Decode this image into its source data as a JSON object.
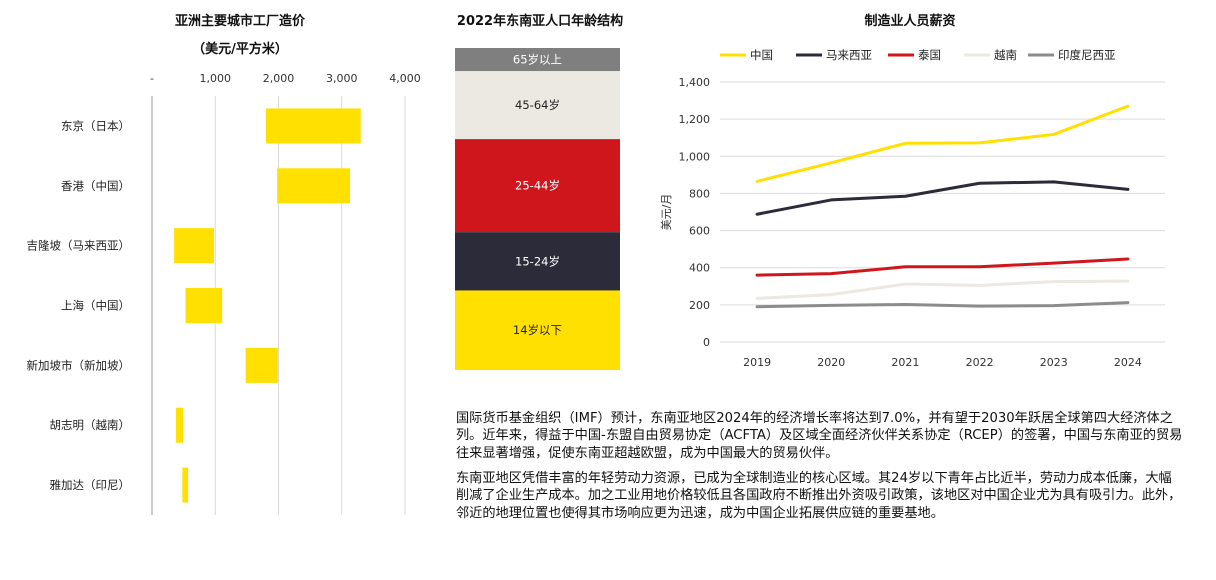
{
  "chart_data": [
    {
      "type": "bar",
      "subtype": "floating-horizontal",
      "title": "亚洲主要城市工厂造价",
      "subtitle": "（美元/平方米）",
      "xlim": [
        0,
        4000
      ],
      "ticks": [
        0,
        1000,
        2000,
        3000,
        4000
      ],
      "tick_labels": [
        "-",
        "1,000",
        "2,000",
        "3,000",
        "4,000"
      ],
      "grid": true,
      "color": "#FFE000",
      "categories": [
        "东京（日本）",
        "香港（中国）",
        "吉隆坡（马来西亚）",
        "上海（中国）",
        "新加坡市（新加坡）",
        "胡志明（越南）",
        "雅加达（印尼）"
      ],
      "ranges": [
        [
          1800,
          3300
        ],
        [
          1980,
          3130
        ],
        [
          350,
          980
        ],
        [
          530,
          1110
        ],
        [
          1480,
          1990
        ],
        [
          380,
          490
        ],
        [
          480,
          570
        ]
      ]
    },
    {
      "type": "bar",
      "subtype": "stacked-100",
      "title": "2022年东南亚人口年龄结构",
      "segments": [
        {
          "label": "65岁以上",
          "share": 0.072,
          "color": "#7F7F7F"
        },
        {
          "label": "45-64岁",
          "share": 0.211,
          "color": "#ECE8E2"
        },
        {
          "label": "25-44岁",
          "share": 0.289,
          "color": "#D0161D"
        },
        {
          "label": "15-24岁",
          "share": 0.181,
          "color": "#2B2B3A"
        },
        {
          "label": "14岁以下",
          "share": 0.247,
          "color": "#FFE000"
        }
      ]
    },
    {
      "type": "line",
      "title": "制造业人员薪资",
      "ylabel": "美元/月",
      "ylim": [
        0,
        1400
      ],
      "y_ticks": [
        0,
        200,
        400,
        600,
        800,
        1000,
        1200,
        1400
      ],
      "y_tick_labels": [
        "0",
        "200",
        "400",
        "600",
        "800",
        "1,000",
        "1,200",
        "1,400"
      ],
      "x": [
        "2019",
        "2020",
        "2021",
        "2022",
        "2023",
        "2024"
      ],
      "grid": true,
      "legend": "top",
      "series": [
        {
          "name": "中国",
          "color": "#FFE000",
          "values": [
            865,
            965,
            1070,
            1072,
            1118,
            1270
          ]
        },
        {
          "name": "马来西亚",
          "color": "#2B2B3A",
          "values": [
            688,
            765,
            785,
            855,
            862,
            822
          ]
        },
        {
          "name": "泰国",
          "color": "#D0161D",
          "values": [
            360,
            368,
            405,
            405,
            425,
            447
          ]
        },
        {
          "name": "越南",
          "color": "#ECE8E2",
          "values": [
            235,
            255,
            312,
            305,
            325,
            328
          ]
        },
        {
          "name": "印度尼西亚",
          "color": "#8C8C8C",
          "values": [
            190,
            197,
            202,
            193,
            196,
            212
          ]
        }
      ]
    }
  ],
  "text": {
    "p1": "国际货币基金组织（IMF）预计，东南亚地区2024年的经济增长率将达到7.0%，并有望于2030年跃居全球第四大经济体之列。近年来，得益于中国-东盟自由贸易协定（ACFTA）及区域全面经济伙伴关系协定（RCEP）的签署，中国与东南亚的贸易往来显著增强，促使东南亚超越欧盟，成为中国最大的贸易伙伴。",
    "p2": "东南亚地区凭借丰富的年轻劳动力资源，已成为全球制造业的核心区域。其24岁以下青年占比近半，劳动力成本低廉，大幅削减了企业生产成本。加之工业用地价格较低且各国政府不断推出外资吸引政策，该地区对中国企业尤为具有吸引力。此外，邻近的地理位置也使得其市场响应更为迅速，成为中国企业拓展供应链的重要基地。"
  }
}
